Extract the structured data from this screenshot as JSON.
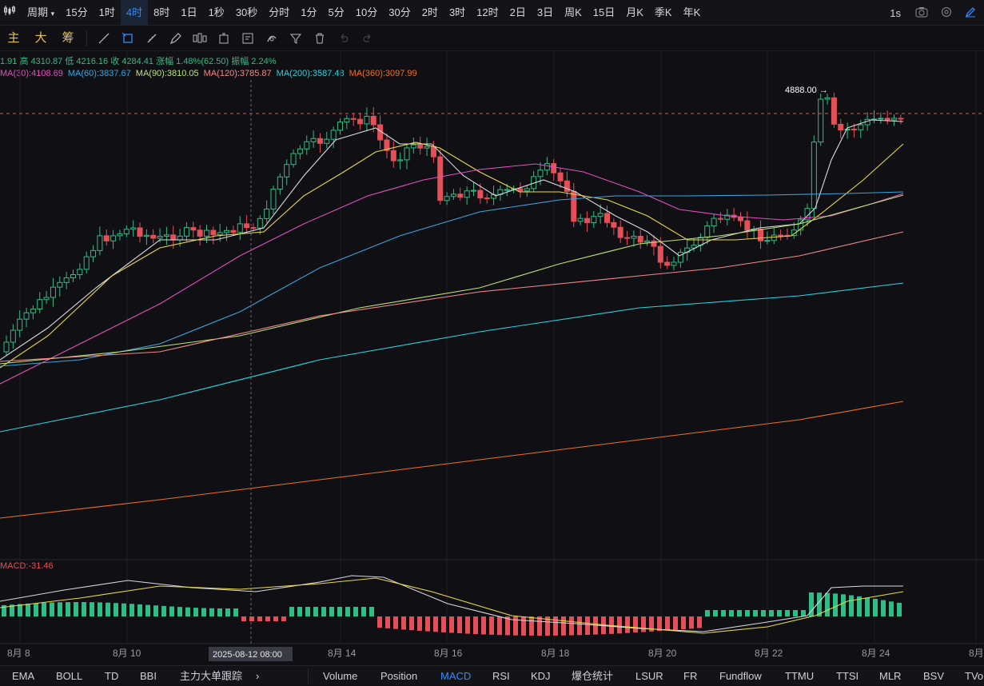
{
  "topbar": {
    "chart_type_icon": "candlestick-icon",
    "period_label": "周期",
    "intervals": [
      "15分",
      "1时",
      "4时",
      "8时",
      "1日",
      "1秒",
      "30秒",
      "分时",
      "1分",
      "5分",
      "10分",
      "30分",
      "2时",
      "3时",
      "12时",
      "2日",
      "3日",
      "周K",
      "15日",
      "月K",
      "季K",
      "年K"
    ],
    "active_interval": "4时",
    "refresh_rate": "1s"
  },
  "toolbar": {
    "chars": [
      "主",
      "大",
      "筹"
    ],
    "tools": [
      "trend-line-icon",
      "channel-icon",
      "square-icon",
      "ruler-icon",
      "pen-icon",
      "fib-icon",
      "date-range-icon",
      "measure-icon",
      "magnet-icon",
      "filter-icon",
      "trash-icon",
      "undo-icon",
      "redo-icon"
    ]
  },
  "ohlc": "1.91 高 4310.87 低 4216.16 收 4284.41 涨幅 1.48%(62.50) 振幅 2.24%",
  "ma": [
    {
      "label": "MA(30):4108.69",
      "color": "#e04fbd"
    },
    {
      "label": "MA(60):3837.67",
      "color": "#3ba4dc"
    },
    {
      "label": "MA(90):3810.05",
      "color": "#bde277"
    },
    {
      "label": "MA(120):3785.87",
      "color": "#f08a8a"
    },
    {
      "label": "MA(200):3587.48",
      "color": "#29d1dd"
    },
    {
      "label": "MA(360):3097.99",
      "color": "#f0701e"
    }
  ],
  "price_marker": "4888.00",
  "cursor_time": "2025-08-12 08:00",
  "macd_label": "MACD:-31.46",
  "x_labels": [
    "8月 8",
    "8月 10",
    "8月 14",
    "8月 16",
    "8月 18",
    "8月 20",
    "8月 22",
    "8月 24",
    "8月"
  ],
  "bottom_tabs_left": [
    "EMA",
    "BOLL",
    "TD",
    "BBI",
    "主力大单跟踪"
  ],
  "bottom_tabs_right": [
    "Volume",
    "Position",
    "MACD",
    "RSI",
    "KDJ",
    "爆仓统计",
    "LSUR",
    "FR",
    "Fundflow",
    "TTMU",
    "TTSI",
    "MLR",
    "BSV",
    "TVo"
  ],
  "active_bottom_tab": "MACD",
  "colors": {
    "up": "#2ebd85",
    "down": "#e54f57",
    "accent": "#2f8bff"
  }
}
